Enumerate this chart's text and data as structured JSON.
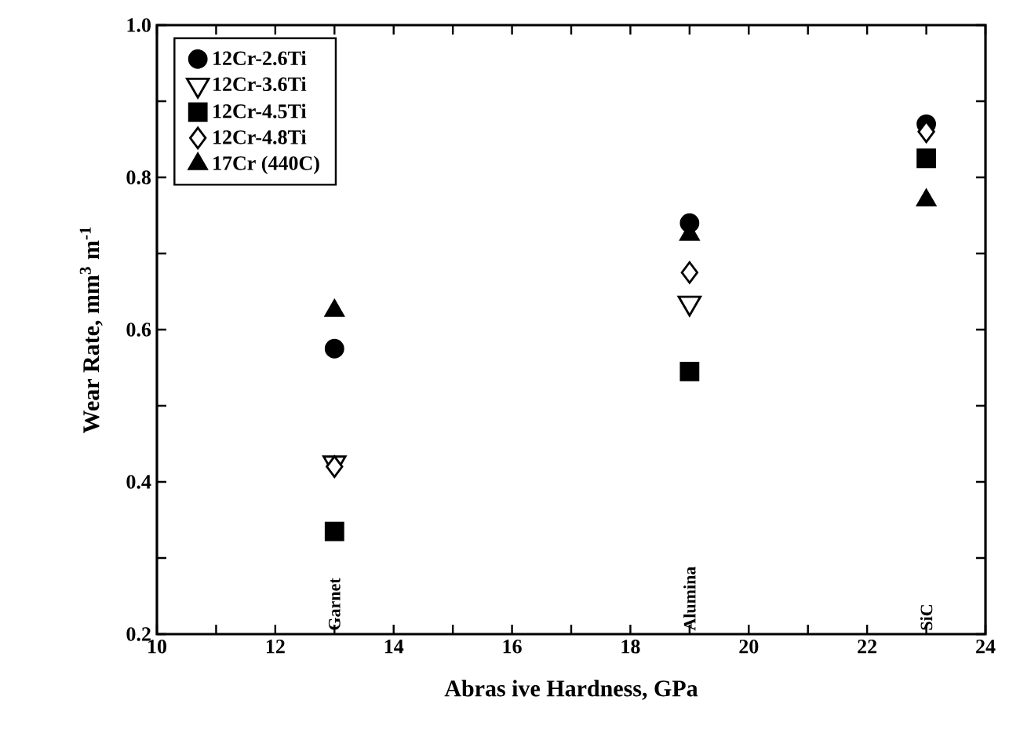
{
  "chart_data": {
    "type": "scatter",
    "xlabel": "Abras ive Hardness, GPa",
    "ylabel": "Wear Rate, mm$^{3}$ m$^{-1}$",
    "x": [
      13,
      19,
      23
    ],
    "series": [
      {
        "name": "12Cr-2.6Ti",
        "color": "#000000",
        "marker": "circle",
        "values": [
          0.575,
          0.74,
          0.87
        ]
      },
      {
        "name": "12Cr-3.6Ti",
        "color": "#000000",
        "marker": "triangle-down-open",
        "values": [
          0.425,
          0.635,
          null
        ]
      },
      {
        "name": "12Cr-4.5Ti",
        "color": "#000000",
        "marker": "square",
        "values": [
          0.335,
          0.545,
          0.825
        ]
      },
      {
        "name": "12Cr-4.8Ti",
        "color": "#000000",
        "marker": "diamond-open",
        "values": [
          0.42,
          0.675,
          0.86
        ]
      },
      {
        "name": "17Cr (440C)",
        "color": "#000000",
        "marker": "triangle",
        "values": [
          0.625,
          0.725,
          0.77
        ]
      }
    ],
    "annotations": [
      "Garnet",
      "Alumina",
      "SiC"
    ],
    "xlim": [
      10,
      24
    ],
    "xticks": [
      10,
      {
        "value": 11,
        "label": null
      },
      12,
      {
        "value": 13,
        "label": null
      },
      14,
      {
        "value": 15,
        "label": null
      },
      16,
      {
        "value": 17,
        "label": null
      },
      18,
      {
        "value": 19,
        "label": null
      },
      20,
      {
        "value": 21,
        "label": null
      },
      22,
      {
        "value": 23,
        "label": null
      },
      24
    ],
    "ylim": [
      0.2,
      1.0
    ],
    "yticks": [
      0.2,
      {
        "value": 0.3,
        "label": null
      },
      0.4,
      {
        "value": 0.5,
        "label": null
      },
      0.6,
      {
        "value": 0.7,
        "label": null
      },
      0.8,
      {
        "value": 0.9,
        "label": null
      },
      {
        "value": 1.0,
        "label": "1.0"
      }
    ],
    "legend": "top left"
  }
}
